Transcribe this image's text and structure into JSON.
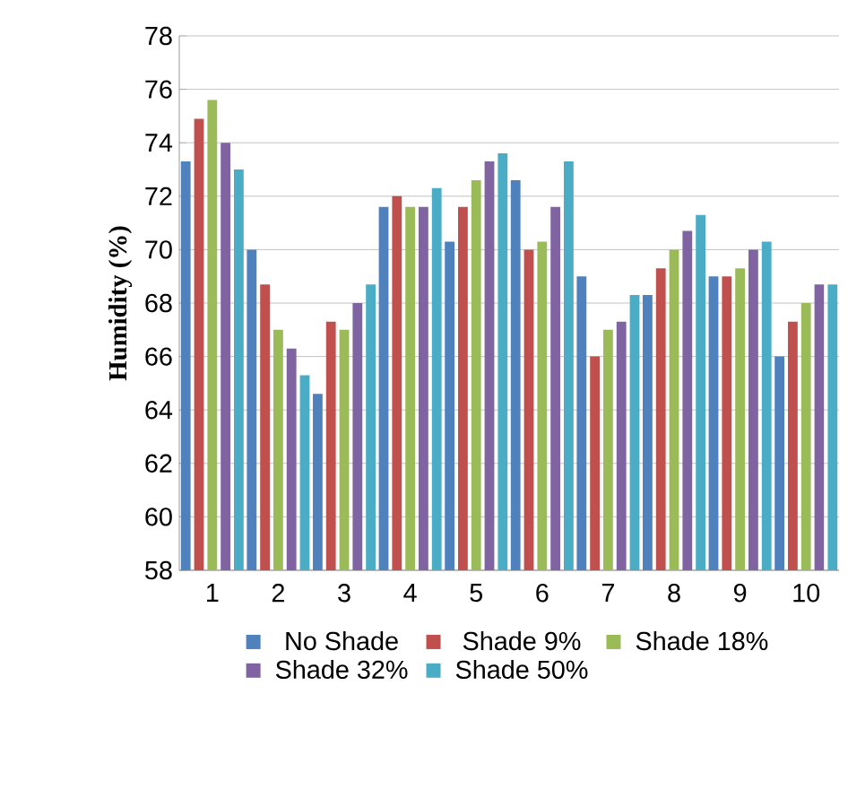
{
  "chart_data": {
    "type": "bar",
    "ylabel": "Humidity (%)",
    "categories": [
      "1",
      "2",
      "3",
      "4",
      "5",
      "6",
      "7",
      "8",
      "9",
      "10"
    ],
    "series": [
      {
        "name": "No Shade",
        "color": "#4f81bd",
        "values": [
          73.3,
          70.0,
          64.6,
          71.6,
          70.3,
          72.6,
          69.0,
          68.3,
          69.0,
          66.0
        ]
      },
      {
        "name": "Shade 9%",
        "color": "#c0504d",
        "values": [
          74.9,
          68.7,
          67.3,
          72.0,
          71.6,
          70.0,
          66.0,
          69.3,
          69.0,
          67.3
        ]
      },
      {
        "name": "Shade 18%",
        "color": "#9bbb59",
        "values": [
          75.6,
          67.0,
          67.0,
          71.6,
          72.6,
          70.3,
          67.0,
          70.0,
          69.3,
          68.0
        ]
      },
      {
        "name": "Shade 32%",
        "color": "#8064a2",
        "values": [
          74.0,
          66.3,
          68.0,
          71.6,
          73.3,
          71.6,
          67.3,
          70.7,
          70.0,
          68.7
        ]
      },
      {
        "name": "Shade 50%",
        "color": "#4bacc6",
        "values": [
          73.0,
          65.3,
          68.7,
          72.3,
          73.6,
          73.3,
          68.3,
          71.3,
          70.3,
          68.7
        ]
      }
    ],
    "ylim": [
      58,
      78
    ],
    "yticks": [
      58,
      60,
      62,
      64,
      66,
      68,
      70,
      72,
      74,
      76,
      78
    ],
    "grid": "y",
    "legend": "bottom"
  }
}
